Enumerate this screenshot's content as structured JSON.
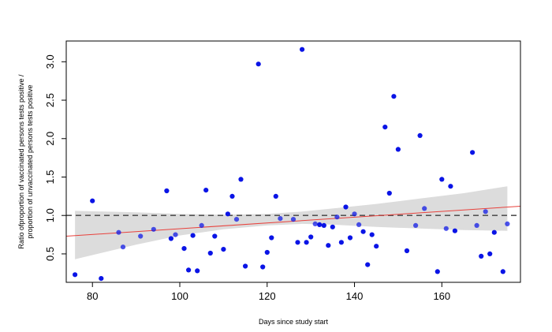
{
  "chart_data": {
    "type": "scatter",
    "title": "",
    "xlabel": "Days since study start",
    "ylabel_line1": "Ratio ofproportion of vaccinated persons tests positive /",
    "ylabel_line2": "proportion of unvaccinated persons tests positive",
    "xlim": [
      74,
      178
    ],
    "ylim": [
      0.13,
      3.27
    ],
    "xticks": [
      80,
      100,
      120,
      140,
      160
    ],
    "yticks": [
      0.5,
      1.0,
      1.5,
      2.0,
      2.5,
      3.0
    ],
    "xtick_labels": [
      "80",
      "100",
      "120",
      "140",
      "160"
    ],
    "ytick_labels": [
      "0.5",
      "1.0",
      "1.5",
      "2.0",
      "2.5",
      "3.0"
    ],
    "reference_line": {
      "y": 1.0,
      "style": "dashed",
      "color": "#555555"
    },
    "trend_line": {
      "x": [
        74,
        178
      ],
      "y": [
        0.73,
        1.12
      ],
      "color": "#e8413c"
    },
    "confidence_band": {
      "color": "#dcdcdc",
      "x": [
        76,
        90,
        100,
        110,
        120,
        128,
        135,
        145,
        155,
        165,
        175
      ],
      "lower": [
        0.43,
        0.62,
        0.74,
        0.82,
        0.87,
        0.89,
        0.88,
        0.85,
        0.83,
        0.81,
        0.8
      ],
      "upper": [
        1.06,
        1.04,
        1.02,
        1.01,
        1.02,
        1.05,
        1.09,
        1.15,
        1.22,
        1.29,
        1.38
      ]
    },
    "point_color": "#0a14e6",
    "points": [
      [
        76,
        0.23
      ],
      [
        80,
        1.19
      ],
      [
        82,
        0.18
      ],
      [
        86,
        0.78
      ],
      [
        87,
        0.59
      ],
      [
        91,
        0.73
      ],
      [
        94,
        0.82
      ],
      [
        97,
        1.32
      ],
      [
        98,
        0.7
      ],
      [
        99,
        0.75
      ],
      [
        101,
        0.57
      ],
      [
        102,
        0.29
      ],
      [
        103,
        0.74
      ],
      [
        104,
        0.28
      ],
      [
        105,
        0.87
      ],
      [
        106,
        1.33
      ],
      [
        107,
        0.51
      ],
      [
        108,
        0.73
      ],
      [
        110,
        0.56
      ],
      [
        111,
        1.02
      ],
      [
        112,
        1.25
      ],
      [
        113,
        0.95
      ],
      [
        114,
        1.47
      ],
      [
        115,
        0.34
      ],
      [
        118,
        2.97
      ],
      [
        119,
        0.33
      ],
      [
        120,
        0.52
      ],
      [
        121,
        0.71
      ],
      [
        122,
        1.25
      ],
      [
        123,
        0.96
      ],
      [
        126,
        0.95
      ],
      [
        127,
        0.65
      ],
      [
        128,
        3.16
      ],
      [
        129,
        0.65
      ],
      [
        130,
        0.72
      ],
      [
        131,
        0.89
      ],
      [
        132,
        0.88
      ],
      [
        133,
        0.87
      ],
      [
        134,
        0.61
      ],
      [
        135,
        0.85
      ],
      [
        136,
        0.98
      ],
      [
        137,
        0.65
      ],
      [
        138,
        1.11
      ],
      [
        139,
        0.71
      ],
      [
        140,
        1.02
      ],
      [
        141,
        0.88
      ],
      [
        142,
        0.79
      ],
      [
        143,
        0.36
      ],
      [
        144,
        0.75
      ],
      [
        145,
        0.6
      ],
      [
        147,
        2.15
      ],
      [
        148,
        1.29
      ],
      [
        149,
        2.55
      ],
      [
        150,
        1.86
      ],
      [
        152,
        0.54
      ],
      [
        154,
        0.87
      ],
      [
        155,
        2.04
      ],
      [
        156,
        1.09
      ],
      [
        159,
        0.27
      ],
      [
        160,
        1.47
      ],
      [
        161,
        0.83
      ],
      [
        162,
        1.38
      ],
      [
        163,
        0.8
      ],
      [
        167,
        1.82
      ],
      [
        168,
        0.87
      ],
      [
        169,
        0.47
      ],
      [
        170,
        1.05
      ],
      [
        171,
        0.5
      ],
      [
        172,
        0.78
      ],
      [
        174,
        0.27
      ],
      [
        175,
        0.89
      ]
    ]
  }
}
